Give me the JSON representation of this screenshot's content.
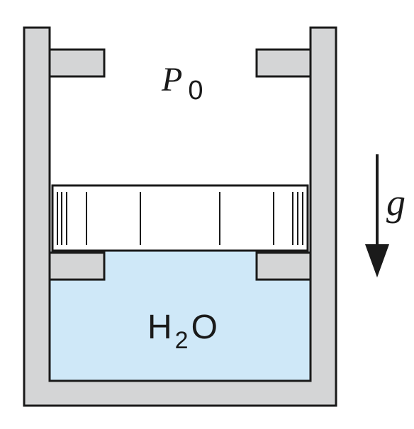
{
  "labels": {
    "top_pressure": {
      "main": "P",
      "subscript": "0"
    },
    "fluid": {
      "main": "H",
      "subscript": "2",
      "suffix": "O"
    },
    "gravity": "g"
  },
  "colors": {
    "wall_fill": "#d4d5d6",
    "water_fill": "#cfe8f8",
    "stroke": "#1a1a1a",
    "piston_fill": "#ffffff",
    "background": "#ffffff"
  },
  "icons": {
    "gravity_arrow": "arrow-down-icon"
  }
}
